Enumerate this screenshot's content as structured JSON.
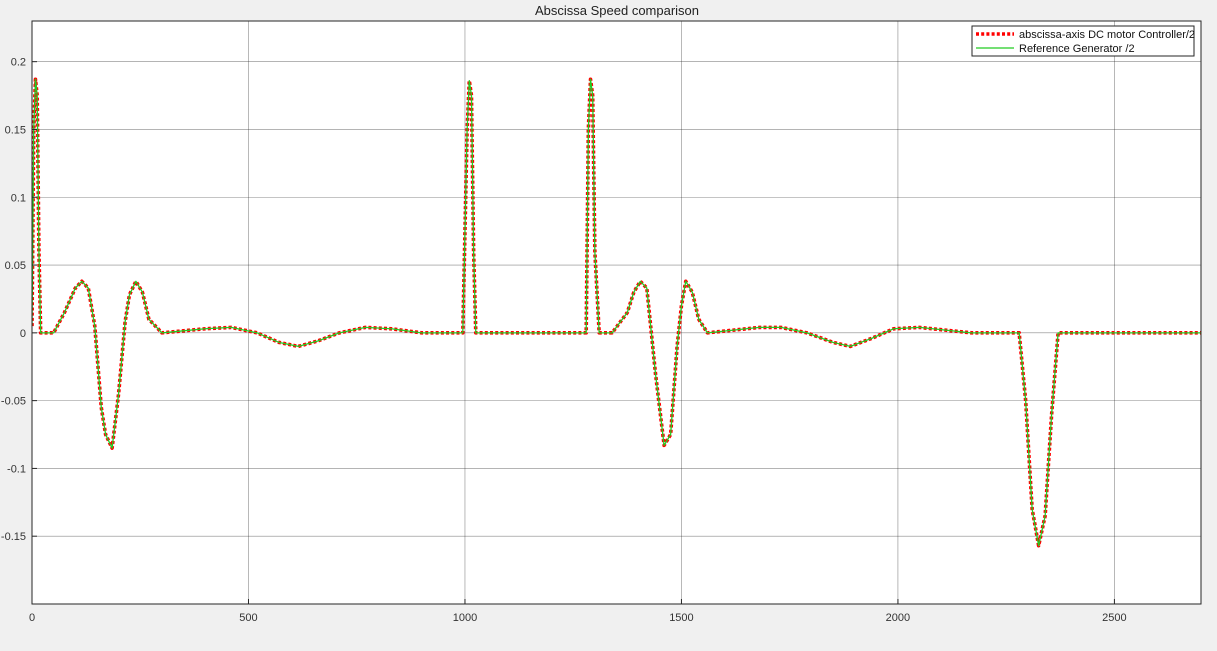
{
  "chart_data": {
    "type": "line",
    "title": "Abscissa Speed comparison",
    "xlabel": "",
    "ylabel": "",
    "xlim": [
      0,
      2700
    ],
    "ylim": [
      -0.2,
      0.23
    ],
    "xticks": [
      0,
      500,
      1000,
      1500,
      2000,
      2500
    ],
    "xtick_labels": [
      "0",
      "500",
      "1000",
      "1500",
      "2000",
      "2500"
    ],
    "yticks": [
      -0.15,
      -0.1,
      -0.05,
      0,
      0.05,
      0.1,
      0.15,
      0.2
    ],
    "ytick_labels": [
      "-0.15",
      "-0.1",
      "-0.05",
      "0",
      "0.05",
      "0.1",
      "0.15",
      "0.2"
    ],
    "grid": true,
    "legend_position": "top-right",
    "series": [
      {
        "name": "abscissa-axis DC motor Controller/2",
        "color": "#ff0000",
        "style": "dotted",
        "x": [
          0,
          4,
          8,
          12,
          16,
          20,
          30,
          50,
          75,
          100,
          115,
          130,
          145,
          160,
          170,
          185,
          200,
          215,
          225,
          240,
          255,
          270,
          300,
          350,
          400,
          460,
          520,
          570,
          615,
          660,
          710,
          770,
          830,
          900,
          950,
          995,
          1005,
          1010,
          1015,
          1020,
          1025,
          1040,
          1100,
          1200,
          1280,
          1285,
          1290,
          1295,
          1300,
          1310,
          1340,
          1375,
          1390,
          1405,
          1420,
          1440,
          1460,
          1475,
          1490,
          1500,
          1510,
          1525,
          1540,
          1560,
          1620,
          1680,
          1730,
          1790,
          1850,
          1890,
          1940,
          1990,
          2050,
          2110,
          2170,
          2230,
          2280,
          2295,
          2310,
          2325,
          2340,
          2355,
          2370,
          2400,
          2500,
          2600,
          2700
        ],
        "y": [
          0.005,
          0.15,
          0.187,
          0.175,
          0.06,
          0.0,
          0.0,
          0.0,
          0.015,
          0.033,
          0.038,
          0.033,
          0.005,
          -0.055,
          -0.075,
          -0.085,
          -0.045,
          0.008,
          0.028,
          0.038,
          0.03,
          0.01,
          0.0,
          0.0015,
          0.003,
          0.004,
          0.0,
          -0.007,
          -0.01,
          -0.006,
          0.0,
          0.004,
          0.003,
          0.0,
          0.0,
          0.0,
          0.15,
          0.186,
          0.175,
          0.06,
          0.0,
          0.0,
          0.0,
          0.0,
          0.0,
          0.15,
          0.187,
          0.175,
          0.06,
          0.0,
          0.0,
          0.015,
          0.03,
          0.038,
          0.033,
          -0.03,
          -0.083,
          -0.075,
          -0.01,
          0.02,
          0.038,
          0.03,
          0.01,
          0.0,
          0.002,
          0.004,
          0.004,
          0.0,
          -0.007,
          -0.01,
          -0.004,
          0.003,
          0.004,
          0.002,
          0.0,
          0.0,
          0.0,
          -0.05,
          -0.13,
          -0.157,
          -0.135,
          -0.06,
          0.0,
          0.0,
          0.0,
          0.0,
          0.0
        ]
      },
      {
        "name": "Reference Generator /2",
        "color": "#22cc22",
        "style": "solid",
        "x": [
          0,
          4,
          8,
          12,
          16,
          20,
          30,
          50,
          75,
          100,
          115,
          130,
          145,
          160,
          170,
          185,
          200,
          215,
          225,
          240,
          255,
          270,
          300,
          350,
          400,
          460,
          520,
          570,
          615,
          660,
          710,
          770,
          830,
          900,
          950,
          995,
          1005,
          1010,
          1015,
          1020,
          1025,
          1040,
          1100,
          1200,
          1280,
          1285,
          1290,
          1295,
          1300,
          1310,
          1340,
          1375,
          1390,
          1405,
          1420,
          1440,
          1460,
          1475,
          1490,
          1500,
          1510,
          1525,
          1540,
          1560,
          1620,
          1680,
          1730,
          1790,
          1850,
          1890,
          1940,
          1990,
          2050,
          2110,
          2170,
          2230,
          2280,
          2295,
          2310,
          2325,
          2340,
          2355,
          2370,
          2400,
          2500,
          2600,
          2700
        ],
        "y": [
          0.005,
          0.15,
          0.187,
          0.175,
          0.06,
          0.0,
          0.0,
          0.0,
          0.015,
          0.033,
          0.038,
          0.033,
          0.005,
          -0.055,
          -0.075,
          -0.085,
          -0.045,
          0.008,
          0.028,
          0.038,
          0.03,
          0.01,
          0.0,
          0.0015,
          0.003,
          0.004,
          0.0,
          -0.007,
          -0.01,
          -0.006,
          0.0,
          0.004,
          0.003,
          0.0,
          0.0,
          0.0,
          0.15,
          0.186,
          0.175,
          0.06,
          0.0,
          0.0,
          0.0,
          0.0,
          0.0,
          0.15,
          0.187,
          0.175,
          0.06,
          0.0,
          0.0,
          0.015,
          0.03,
          0.038,
          0.033,
          -0.03,
          -0.083,
          -0.075,
          -0.01,
          0.02,
          0.038,
          0.03,
          0.01,
          0.0,
          0.002,
          0.004,
          0.004,
          0.0,
          -0.007,
          -0.01,
          -0.004,
          0.003,
          0.004,
          0.002,
          0.0,
          0.0,
          0.0,
          -0.05,
          -0.13,
          -0.157,
          -0.135,
          -0.06,
          0.0,
          0.0,
          0.0,
          0.0,
          0.0
        ]
      }
    ]
  }
}
